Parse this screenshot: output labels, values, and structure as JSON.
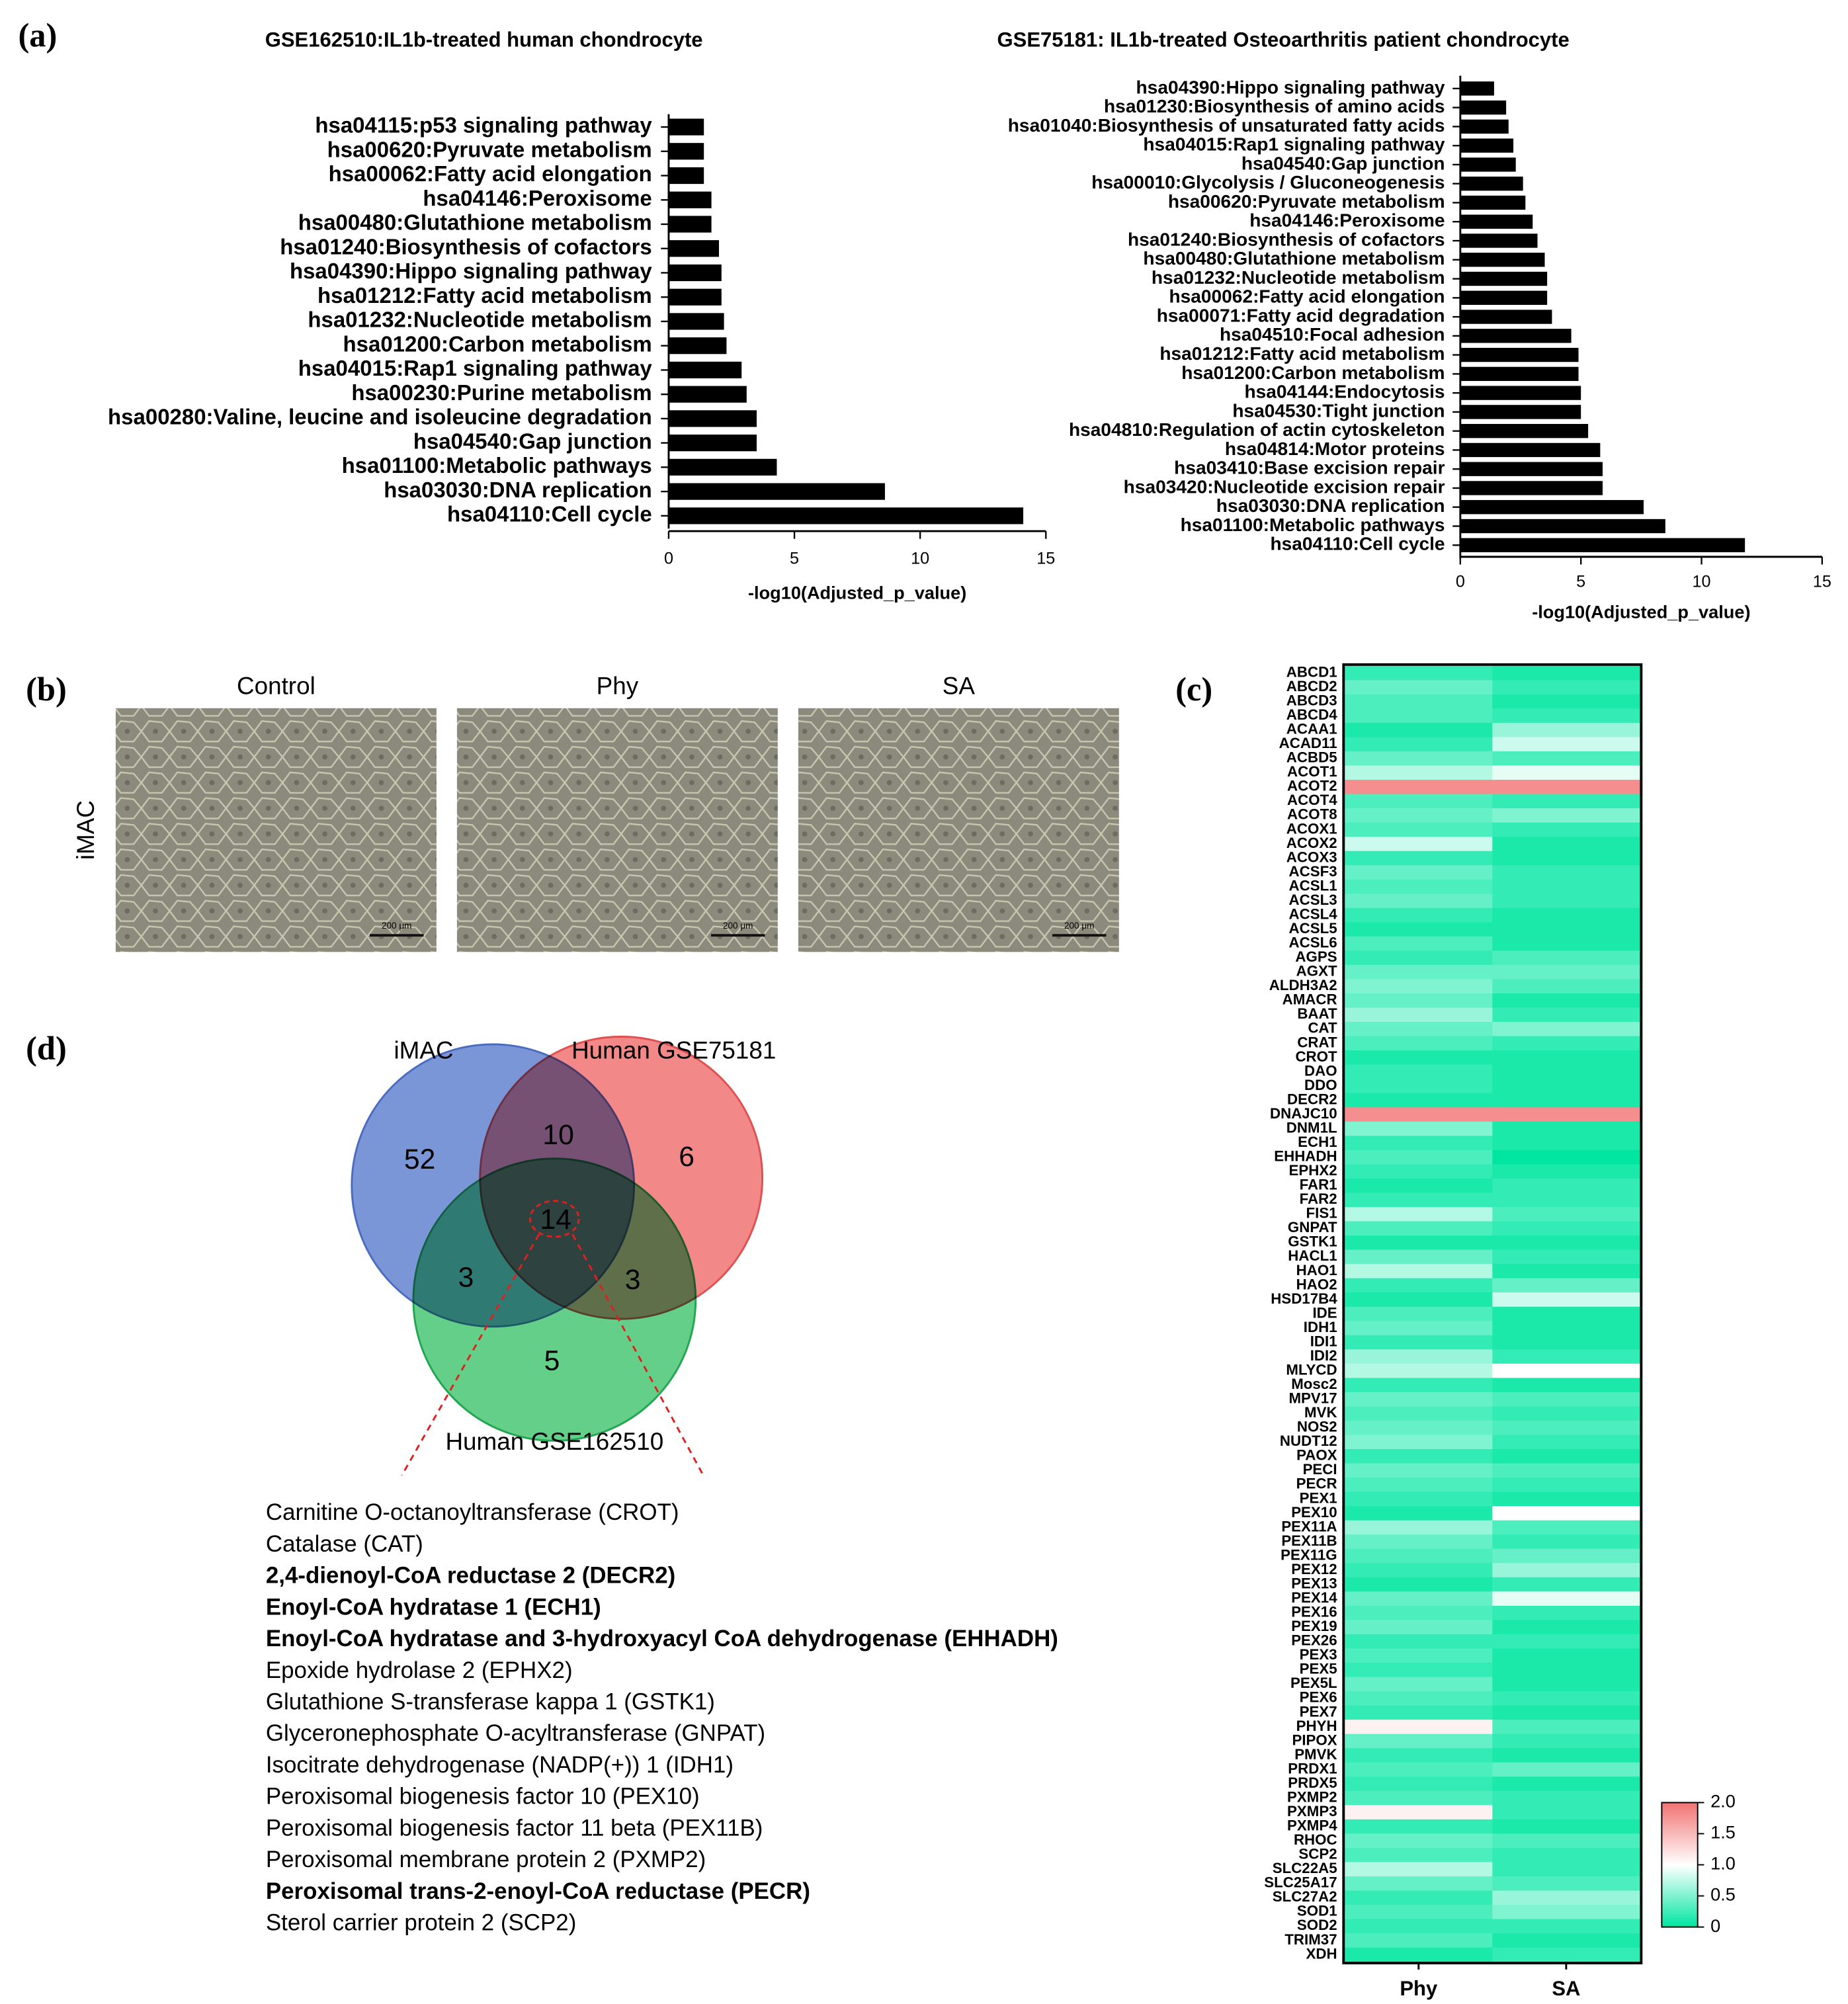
{
  "panel_labels": [
    "(a)",
    "(b)",
    "(c)",
    "(d)"
  ],
  "chart_data": [
    {
      "type": "bar",
      "orientation": "horizontal",
      "title": "GSE162510:IL1b-treated human chondrocyte",
      "x_label": "-log10(Adjusted_p_value)",
      "color": "#000000",
      "categories": [
        "hsa04115:p53 signaling pathway",
        "hsa00620:Pyruvate metabolism",
        "hsa00062:Fatty acid elongation",
        "hsa04146:Peroxisome",
        "hsa00480:Glutathione metabolism",
        "hsa01240:Biosynthesis of cofactors",
        "hsa04390:Hippo signaling pathway",
        "hsa01212:Fatty acid metabolism",
        "hsa01232:Nucleotide metabolism",
        "hsa01200:Carbon metabolism",
        "hsa04015:Rap1 signaling pathway",
        "hsa00230:Purine metabolism",
        "hsa00280:Valine, leucine and isoleucine degradation",
        "hsa04540:Gap junction",
        "hsa01100:Metabolic pathways",
        "hsa03030:DNA replication",
        "hsa04110:Cell cycle"
      ],
      "values": [
        1.4,
        1.4,
        1.4,
        1.7,
        1.7,
        2.0,
        2.1,
        2.1,
        2.2,
        2.3,
        2.9,
        3.1,
        3.5,
        3.5,
        4.3,
        8.6,
        14.1
      ],
      "xlim": [
        0,
        15
      ],
      "xticks": [
        0,
        5,
        10,
        15
      ]
    },
    {
      "type": "bar",
      "orientation": "horizontal",
      "title": "GSE75181: IL1b-treated Osteoarthritis patient chondrocyte",
      "x_label": "-log10(Adjusted_p_value)",
      "color": "#000000",
      "categories": [
        "hsa04390:Hippo signaling pathway",
        "hsa01230:Biosynthesis of amino acids",
        "hsa01040:Biosynthesis of unsaturated fatty acids",
        "hsa04015:Rap1 signaling pathway",
        "hsa04540:Gap junction",
        "hsa00010:Glycolysis / Gluconeogenesis",
        "hsa00620:Pyruvate metabolism",
        "hsa04146:Peroxisome",
        "hsa01240:Biosynthesis of cofactors",
        "hsa00480:Glutathione metabolism",
        "hsa01232:Nucleotide metabolism",
        "hsa00062:Fatty acid elongation",
        "hsa00071:Fatty acid degradation",
        "hsa04510:Focal adhesion",
        "hsa01212:Fatty acid metabolism",
        "hsa01200:Carbon metabolism",
        "hsa04144:Endocytosis",
        "hsa04530:Tight junction",
        "hsa04810:Regulation of actin cytoskeleton",
        "hsa04814:Motor proteins",
        "hsa03410:Base excision repair",
        "hsa03420:Nucleotide excision repair",
        "hsa03030:DNA replication",
        "hsa01100:Metabolic pathways",
        "hsa04110:Cell cycle"
      ],
      "values": [
        1.4,
        1.9,
        2.0,
        2.2,
        2.3,
        2.6,
        2.7,
        3.0,
        3.2,
        3.5,
        3.6,
        3.6,
        3.8,
        4.6,
        4.9,
        4.9,
        5.0,
        5.0,
        5.3,
        5.8,
        5.9,
        5.9,
        7.6,
        8.5,
        11.8
      ],
      "xlim": [
        0,
        15
      ],
      "xticks": [
        0,
        5,
        10,
        15
      ]
    },
    {
      "type": "heatmap",
      "rows": [
        "ABCD1",
        "ABCD2",
        "ABCD3",
        "ABCD4",
        "ACAA1",
        "ACAD11",
        "ACBD5",
        "ACOT1",
        "ACOT2",
        "ACOT4",
        "ACOT8",
        "ACOX1",
        "ACOX2",
        "ACOX3",
        "ACSF3",
        "ACSL1",
        "ACSL3",
        "ACSL4",
        "ACSL5",
        "ACSL6",
        "AGPS",
        "AGXT",
        "ALDH3A2",
        "AMACR",
        "BAAT",
        "CAT",
        "CRAT",
        "CROT",
        "DAO",
        "DDO",
        "DECR2",
        "DNAJC10",
        "DNM1L",
        "ECH1",
        "EHHADH",
        "EPHX2",
        "FAR1",
        "FAR2",
        "FIS1",
        "GNPAT",
        "GSTK1",
        "HACL1",
        "HAO1",
        "HAO2",
        "HSD17B4",
        "IDE",
        "IDH1",
        "IDI1",
        "IDI2",
        "MLYCD",
        "Mosc2",
        "MPV17",
        "MVK",
        "NOS2",
        "NUDT12",
        "PAOX",
        "PECI",
        "PECR",
        "PEX1",
        "PEX10",
        "PEX11A",
        "PEX11B",
        "PEX11G",
        "PEX12",
        "PEX13",
        "PEX14",
        "PEX16",
        "PEX19",
        "PEX26",
        "PEX3",
        "PEX5",
        "PEX5L",
        "PEX6",
        "PEX7",
        "PHYH",
        "PIPOX",
        "PMVK",
        "PRDX1",
        "PRDX5",
        "PXMP2",
        "PXMP3",
        "PXMP4",
        "RHOC",
        "SCP2",
        "SLC22A5",
        "SLC25A17",
        "SLC27A2",
        "SOD1",
        "SOD2",
        "TRIM37",
        "XDH"
      ],
      "series": [
        {
          "name": "Phy",
          "values": [
            0.2,
            0.4,
            0.3,
            0.3,
            0.1,
            0.2,
            0.4,
            0.7,
            1.8,
            0.3,
            0.4,
            0.3,
            0.8,
            0.2,
            0.4,
            0.3,
            0.4,
            0.2,
            0.1,
            0.3,
            0.2,
            0.4,
            0.5,
            0.4,
            0.6,
            0.4,
            0.3,
            0.1,
            0.2,
            0.2,
            0.1,
            1.8,
            0.5,
            0.2,
            0.3,
            0.2,
            0.1,
            0.2,
            0.7,
            0.3,
            0.1,
            0.4,
            0.7,
            0.2,
            0.1,
            0.3,
            0.4,
            0.2,
            0.6,
            0.7,
            0.2,
            0.4,
            0.3,
            0.4,
            0.5,
            0.2,
            0.4,
            0.3,
            0.2,
            0.1,
            0.6,
            0.4,
            0.3,
            0.2,
            0.1,
            0.4,
            0.3,
            0.4,
            0.2,
            0.3,
            0.2,
            0.4,
            0.3,
            0.2,
            1.1,
            0.4,
            0.2,
            0.3,
            0.2,
            0.3,
            1.1,
            0.2,
            0.4,
            0.3,
            0.7,
            0.4,
            0.2,
            0.3,
            0.2,
            0.3,
            0.1
          ]
        },
        {
          "name": "SA",
          "values": [
            0.1,
            0.2,
            0.1,
            0.2,
            0.6,
            0.8,
            0.3,
            0.9,
            1.8,
            0.2,
            0.5,
            0.2,
            0.1,
            0.1,
            0.2,
            0.2,
            0.2,
            0.1,
            0.1,
            0.1,
            0.3,
            0.4,
            0.3,
            0.1,
            0.2,
            0.5,
            0.2,
            0.1,
            0.1,
            0.1,
            0.1,
            1.8,
            0.1,
            0.1,
            0.0,
            0.1,
            0.2,
            0.2,
            0.3,
            0.2,
            0.1,
            0.2,
            0.1,
            0.4,
            0.8,
            0.1,
            0.1,
            0.1,
            0.2,
            1.0,
            0.1,
            0.3,
            0.2,
            0.3,
            0.2,
            0.1,
            0.3,
            0.2,
            0.1,
            1.0,
            0.3,
            0.2,
            0.4,
            0.6,
            0.2,
            0.9,
            0.2,
            0.1,
            0.2,
            0.1,
            0.1,
            0.1,
            0.2,
            0.1,
            0.3,
            0.2,
            0.1,
            0.4,
            0.1,
            0.2,
            0.2,
            0.1,
            0.3,
            0.2,
            0.2,
            0.3,
            0.6,
            0.5,
            0.2,
            0.1,
            0.2
          ]
        }
      ],
      "colorbar": {
        "lim": [
          0,
          2
        ],
        "ticks": [
          0,
          0.5,
          {
            "value": 1,
            "label": "1.0"
          },
          1.5,
          {
            "value": 2,
            "label": "2.0"
          }
        ],
        "colors": [
          "#00e6a1",
          "#ffffff",
          "#f27272"
        ]
      }
    }
  ],
  "images": {
    "row_label": "iMAC",
    "columns": [
      {
        "label": "Control",
        "scale_bar": "200 μm"
      },
      {
        "label": "Phy",
        "scale_bar": "200 μm"
      },
      {
        "label": "SA",
        "scale_bar": "200 μm"
      }
    ]
  },
  "venn": {
    "sets": [
      "iMAC",
      "Human GSE75181",
      "Human GSE162510"
    ],
    "region_counts": [
      52,
      10,
      6,
      14,
      3,
      3,
      5
    ]
  },
  "gene_list": [
    {
      "text": "Carnitine O-octanoyltransferase (CROT)",
      "bold": false
    },
    {
      "text": "Catalase (CAT)",
      "bold": false
    },
    {
      "text": "2,4-dienoyl-CoA reductase 2 (DECR2)",
      "bold": true
    },
    {
      "text": "Enoyl-CoA hydratase 1 (ECH1)",
      "bold": true
    },
    {
      "text": "Enoyl-CoA hydratase and 3-hydroxyacyl CoA dehydrogenase (EHHADH)",
      "bold": true
    },
    {
      "text": "Epoxide hydrolase 2 (EPHX2)",
      "bold": false
    },
    {
      "text": "Glutathione S-transferase kappa 1 (GSTK1)",
      "bold": false
    },
    {
      "text": "Glyceronephosphate O-acyltransferase (GNPAT)",
      "bold": false
    },
    {
      "text": "Isocitrate dehydrogenase (NADP(+)) 1 (IDH1)",
      "bold": false
    },
    {
      "text": "Peroxisomal biogenesis factor 10 (PEX10)",
      "bold": false
    },
    {
      "text": "Peroxisomal biogenesis factor 11 beta (PEX11B)",
      "bold": false
    },
    {
      "text": "Peroxisomal membrane protein 2 (PXMP2)",
      "bold": false
    },
    {
      "text": "Peroxisomal trans-2-enoyl-CoA reductase (PECR)",
      "bold": true
    },
    {
      "text": "Sterol carrier protein 2 (SCP2)",
      "bold": false
    }
  ]
}
